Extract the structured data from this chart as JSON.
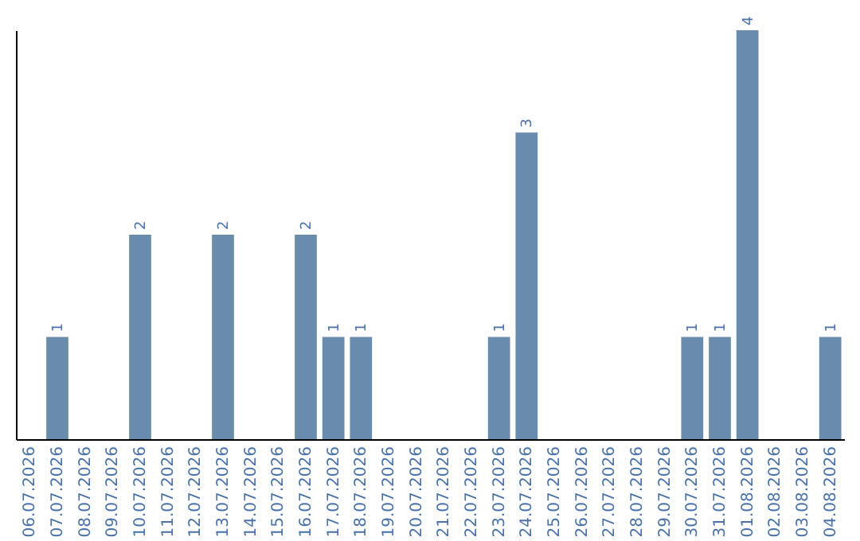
{
  "chart_data": {
    "type": "bar",
    "categories": [
      "06.07.2026",
      "07.07.2026",
      "08.07.2026",
      "09.07.2026",
      "10.07.2026",
      "11.07.2026",
      "12.07.2026",
      "13.07.2026",
      "14.07.2026",
      "15.07.2026",
      "16.07.2026",
      "17.07.2026",
      "18.07.2026",
      "19.07.2026",
      "20.07.2026",
      "21.07.2026",
      "22.07.2026",
      "23.07.2026",
      "24.07.2026",
      "25.07.2026",
      "26.07.2026",
      "27.07.2026",
      "28.07.2026",
      "29.07.2026",
      "30.07.2026",
      "31.07.2026",
      "01.08.2026",
      "02.08.2026",
      "03.08.2026",
      "04.08.2026"
    ],
    "values": [
      0,
      1,
      0,
      0,
      2,
      0,
      0,
      2,
      0,
      0,
      2,
      1,
      1,
      0,
      0,
      0,
      0,
      1,
      3,
      0,
      0,
      0,
      0,
      0,
      1,
      1,
      4,
      0,
      0,
      1
    ],
    "value_labels": [
      null,
      "1",
      null,
      null,
      "2",
      null,
      null,
      "2",
      null,
      null,
      "2",
      "1",
      "1",
      null,
      null,
      null,
      null,
      "1",
      "3",
      null,
      null,
      null,
      null,
      null,
      "1",
      "1",
      "4",
      null,
      null,
      "1"
    ],
    "color": "#6a8cac",
    "tick_labels": "x",
    "grid": false
  }
}
